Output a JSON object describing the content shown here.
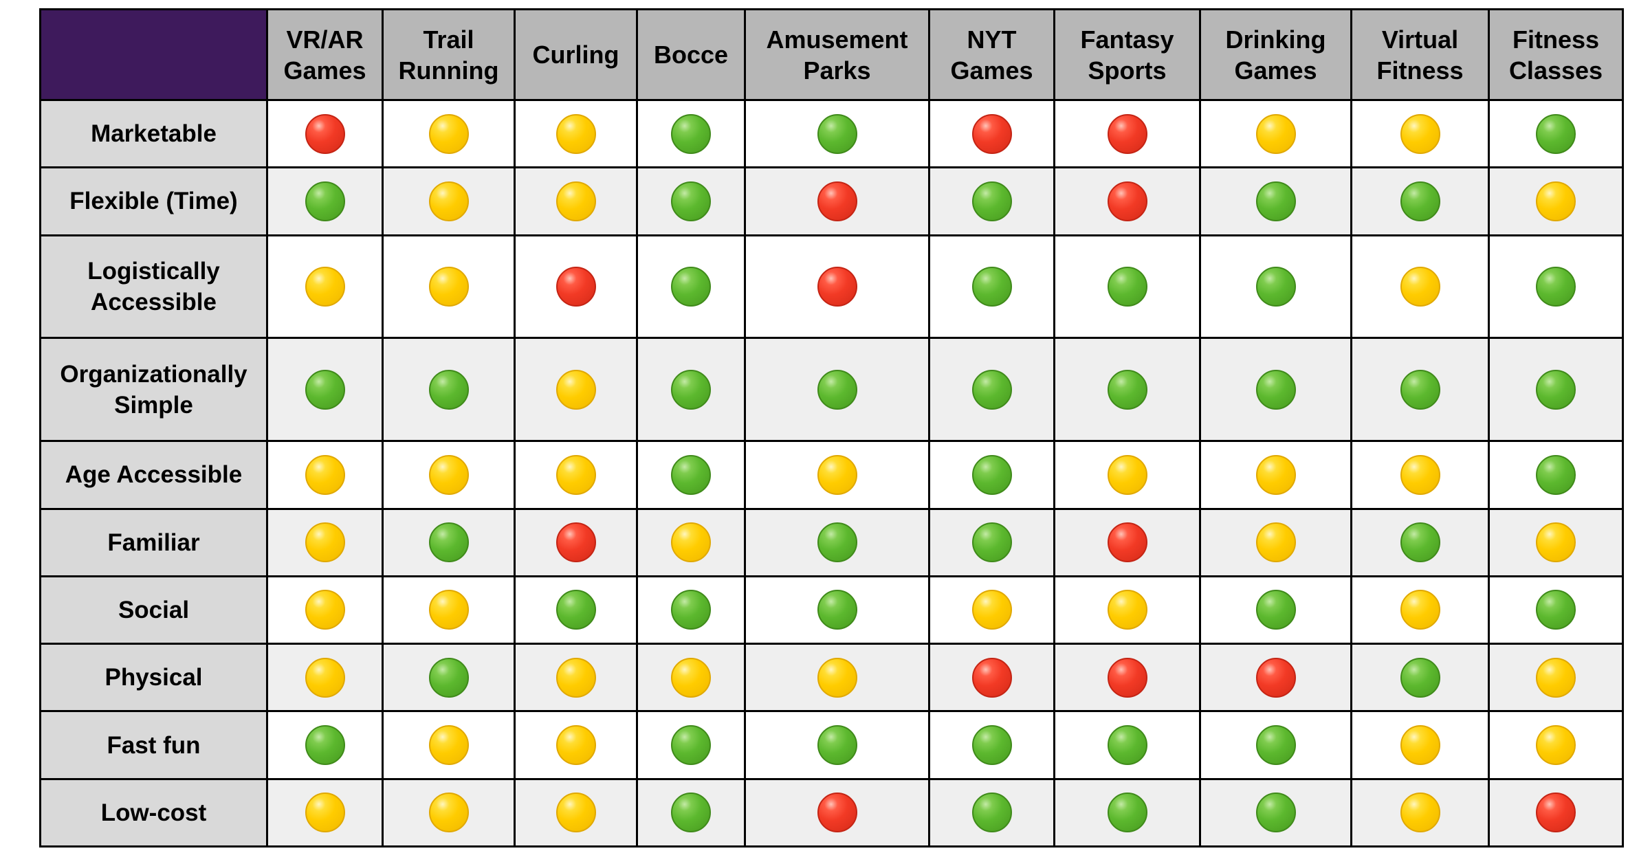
{
  "chart_data": {
    "type": "table",
    "title": "",
    "columns": [
      "VR/AR Games",
      "Trail Running",
      "Curling",
      "Bocce",
      "Amusement Parks",
      "NYT Games",
      "Fantasy Sports",
      "Drinking Games",
      "Virtual Fitness",
      "Fitness Classes"
    ],
    "column_lines": [
      [
        "VR/AR",
        "Games"
      ],
      [
        "Trail",
        "Running"
      ],
      [
        "Curling"
      ],
      [
        "Bocce"
      ],
      [
        "Amusement",
        "Parks"
      ],
      [
        "NYT",
        "Games"
      ],
      [
        "Fantasy",
        "Sports"
      ],
      [
        "Drinking",
        "Games"
      ],
      [
        "Virtual",
        "Fitness"
      ],
      [
        "Fitness",
        "Classes"
      ]
    ],
    "rows": [
      "Marketable",
      "Flexible (Time)",
      "Logistically Accessible",
      "Organizationally Simple",
      "Age Accessible",
      "Familiar",
      "Social",
      "Physical",
      "Fast fun",
      "Low-cost"
    ],
    "row_lines": [
      [
        "Marketable"
      ],
      [
        "Flexible (Time)"
      ],
      [
        "Logistically",
        "Accessible"
      ],
      [
        "Organizationally",
        "Simple"
      ],
      [
        "Age Accessible"
      ],
      [
        "Familiar"
      ],
      [
        "Social"
      ],
      [
        "Physical"
      ],
      [
        "Fast fun"
      ],
      [
        "Low-cost"
      ]
    ],
    "values": [
      [
        "red",
        "yellow",
        "yellow",
        "green",
        "green",
        "red",
        "red",
        "yellow",
        "yellow",
        "green"
      ],
      [
        "green",
        "yellow",
        "yellow",
        "green",
        "red",
        "green",
        "red",
        "green",
        "green",
        "yellow"
      ],
      [
        "yellow",
        "yellow",
        "red",
        "green",
        "red",
        "green",
        "green",
        "green",
        "yellow",
        "green"
      ],
      [
        "green",
        "green",
        "yellow",
        "green",
        "green",
        "green",
        "green",
        "green",
        "green",
        "green"
      ],
      [
        "yellow",
        "yellow",
        "yellow",
        "green",
        "yellow",
        "green",
        "yellow",
        "yellow",
        "yellow",
        "green"
      ],
      [
        "yellow",
        "green",
        "red",
        "yellow",
        "green",
        "green",
        "red",
        "yellow",
        "green",
        "yellow"
      ],
      [
        "yellow",
        "yellow",
        "green",
        "green",
        "green",
        "yellow",
        "yellow",
        "green",
        "yellow",
        "green"
      ],
      [
        "yellow",
        "green",
        "yellow",
        "yellow",
        "yellow",
        "red",
        "red",
        "red",
        "green",
        "yellow"
      ],
      [
        "green",
        "yellow",
        "yellow",
        "green",
        "green",
        "green",
        "green",
        "green",
        "yellow",
        "yellow"
      ],
      [
        "yellow",
        "yellow",
        "yellow",
        "green",
        "red",
        "green",
        "green",
        "green",
        "yellow",
        "red"
      ]
    ],
    "colors": {
      "header_bg": "#b7b7b7",
      "corner_bg": "#3e1a5c",
      "row_label_bg": "#d9d9d9",
      "cell_bg": "#ffffff",
      "cell_bg_alt": "#efefef",
      "green": "#5cb82e",
      "yellow": "#ffcc00",
      "red": "#f23a25"
    }
  }
}
